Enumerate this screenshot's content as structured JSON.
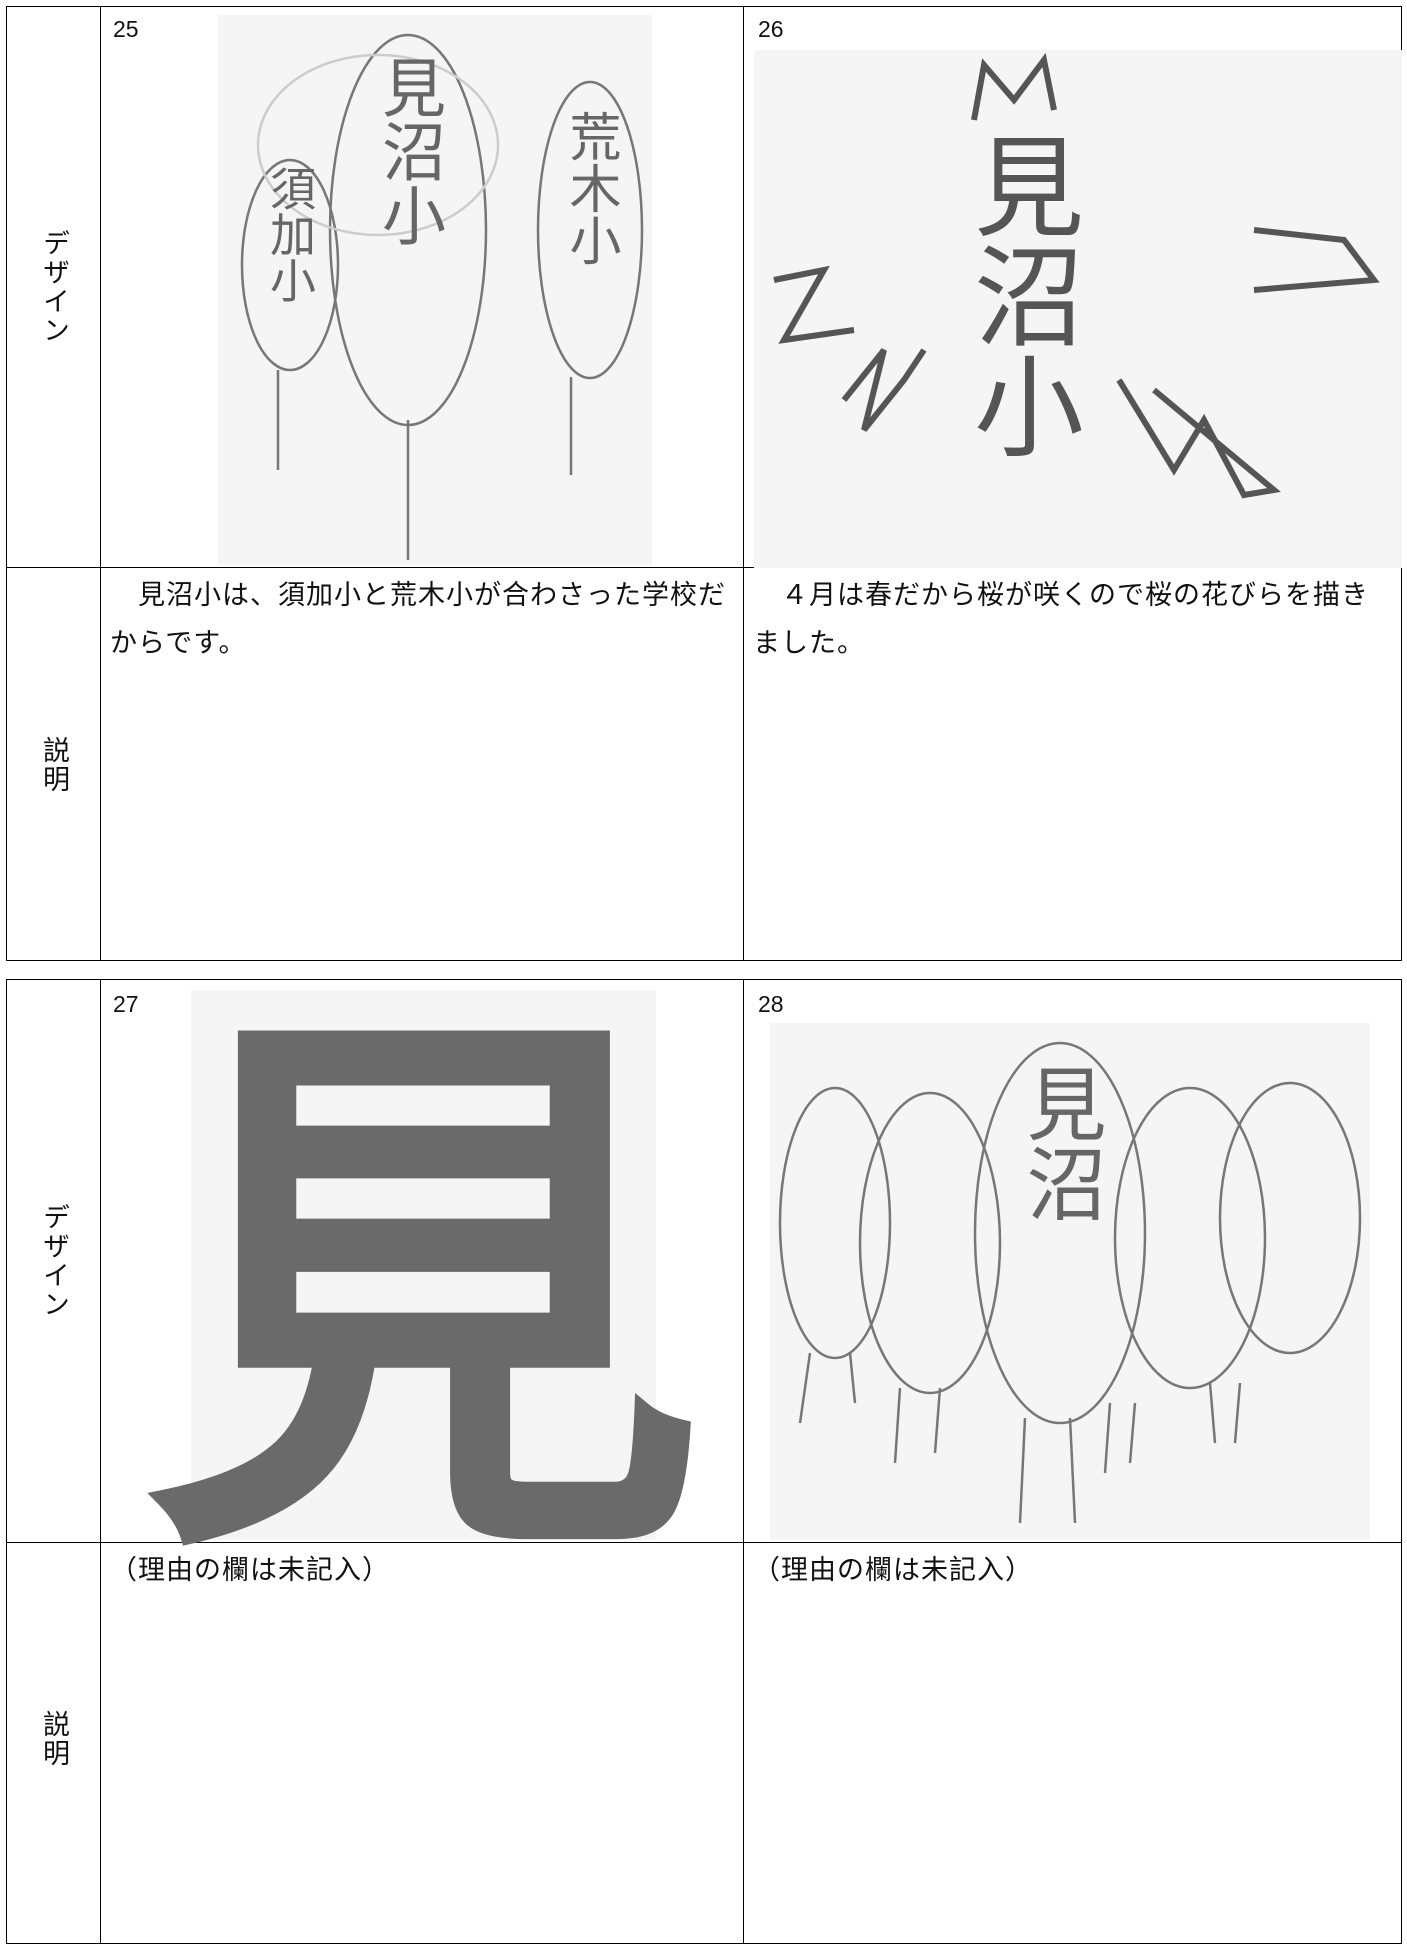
{
  "tables": [
    {
      "design_label": "デザイン",
      "description_label": "説明",
      "entries": [
        {
          "number": "25",
          "sketch_texts": [
            "須加小",
            "見沼小",
            "荒木小"
          ],
          "description": "　見沼小は、須加小と荒木小が合わさった学校だからです。"
        },
        {
          "number": "26",
          "sketch_texts": [
            "見沼小"
          ],
          "description": "　４月は春だから桜が咲くので桜の花びらを描きました。"
        }
      ]
    },
    {
      "design_label": "デザイン",
      "description_label": "説明",
      "entries": [
        {
          "number": "27",
          "sketch_texts": [
            "見"
          ],
          "description": "（理由の欄は未記入）"
        },
        {
          "number": "28",
          "sketch_texts": [
            "見沼"
          ],
          "description": "（理由の欄は未記入）"
        }
      ]
    }
  ]
}
